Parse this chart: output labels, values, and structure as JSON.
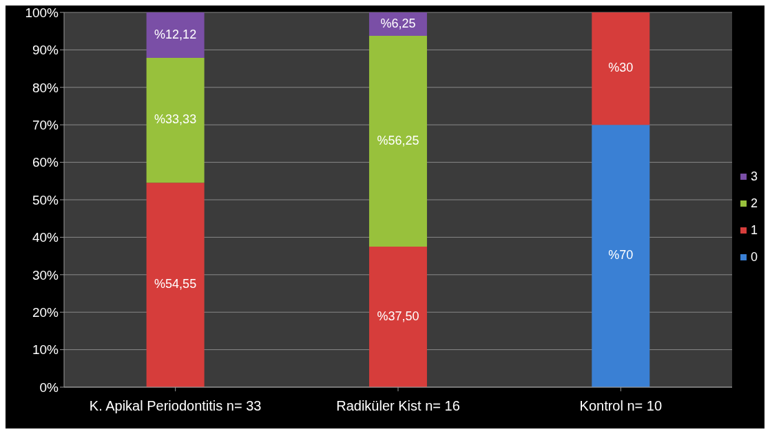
{
  "chart_data": {
    "type": "bar",
    "stacked": true,
    "categories": [
      "K. Apikal Periodontitis n= 33",
      "Radiküler Kist n= 16",
      "Kontrol n= 10"
    ],
    "series": [
      {
        "name": "0",
        "color": "#3a80d4",
        "values": [
          0,
          0,
          70
        ],
        "value_labels": [
          null,
          null,
          "%70"
        ]
      },
      {
        "name": "1",
        "color": "#d63d3b",
        "values": [
          54.55,
          37.5,
          30
        ],
        "value_labels": [
          "%54,55",
          "%37,50",
          "%30"
        ]
      },
      {
        "name": "2",
        "color": "#98c13c",
        "values": [
          33.33,
          56.25,
          0
        ],
        "value_labels": [
          "%33,33",
          "%56,25",
          null
        ]
      },
      {
        "name": "3",
        "color": "#7a4fa6",
        "values": [
          12.12,
          6.25,
          0
        ],
        "value_labels": [
          "%12,12",
          "%6,25",
          null
        ]
      }
    ],
    "ylim": [
      0,
      100
    ],
    "yticks": [
      {
        "value": 0,
        "label": "0%"
      },
      {
        "value": 10,
        "label": "10%"
      },
      {
        "value": 20,
        "label": "20%"
      },
      {
        "value": 30,
        "label": "30%"
      },
      {
        "value": 40,
        "label": "40%"
      },
      {
        "value": 50,
        "label": "50%"
      },
      {
        "value": 60,
        "label": "60%"
      },
      {
        "value": 70,
        "label": "70%"
      },
      {
        "value": 80,
        "label": "80%"
      },
      {
        "value": 90,
        "label": "90%"
      },
      {
        "value": 100,
        "label": "100%"
      }
    ],
    "grid": "y",
    "legend": "right"
  }
}
